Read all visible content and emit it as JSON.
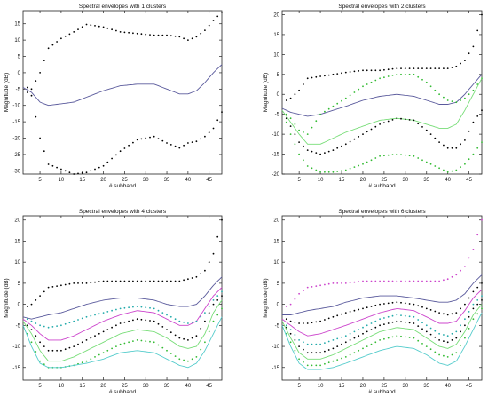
{
  "chart_data": [
    {
      "type": "line",
      "title": "Spectral envelopes with 1 clusters",
      "xlabel": "# subband",
      "ylabel": "Magnitude (dB)",
      "xlim": [
        1,
        48
      ],
      "ylim": [
        -31,
        19
      ],
      "xticks": [
        5,
        10,
        15,
        20,
        25,
        30,
        35,
        40,
        45
      ],
      "yticks": [
        15,
        10,
        5,
        0,
        -5,
        -10,
        -15,
        -20,
        -25,
        -30
      ],
      "grid": false,
      "x": [
        1,
        3,
        5,
        7,
        10,
        13,
        16,
        20,
        24,
        28,
        32,
        35,
        38,
        40,
        42,
        44,
        46,
        48
      ],
      "series": [
        {
          "color": "#5a5a9c",
          "style": "line",
          "values": [
            -4.5,
            -6,
            -9,
            -10,
            -9.5,
            -9,
            -7.5,
            -5.5,
            -4,
            -3.5,
            -3.5,
            -5,
            -6.5,
            -6.5,
            -5.5,
            -3,
            0,
            2.5
          ]
        },
        {
          "color": "#000000",
          "style": "dots",
          "values": [
            -4,
            -5,
            0,
            7.5,
            10.5,
            12.5,
            14.8,
            14,
            12.5,
            12,
            11.5,
            11.5,
            11,
            10,
            11,
            13,
            16,
            18.5
          ]
        },
        {
          "color": "#000000",
          "style": "dots",
          "values": [
            -5,
            -7,
            -20,
            -28,
            -29.5,
            -31,
            -30.5,
            -28.5,
            -24,
            -20.5,
            -19.5,
            -21.5,
            -23,
            -21.5,
            -21,
            -19.5,
            -17,
            -12
          ]
        }
      ]
    },
    {
      "type": "line",
      "title": "Spectral envelopes with 2 clusters",
      "xlabel": "# subband",
      "ylabel": "Magnitude (dB)",
      "xlim": [
        1,
        48
      ],
      "ylim": [
        -20,
        21
      ],
      "xticks": [
        5,
        10,
        15,
        20,
        25,
        30,
        35,
        40,
        45
      ],
      "yticks": [
        20,
        15,
        10,
        5,
        0,
        -5,
        -10,
        -15,
        -20
      ],
      "grid": false,
      "x": [
        1,
        3,
        5,
        7,
        10,
        13,
        16,
        20,
        24,
        28,
        32,
        35,
        38,
        40,
        42,
        44,
        46,
        48
      ],
      "series": [
        {
          "color": "#5a5a9c",
          "style": "line",
          "values": [
            -3.5,
            -4.5,
            -5,
            -5.5,
            -5,
            -4,
            -3,
            -1.5,
            -0.5,
            0,
            -0.5,
            -1.5,
            -2.5,
            -2.5,
            -2,
            0,
            2.5,
            5
          ]
        },
        {
          "color": "#000000",
          "style": "dots",
          "values": [
            -2,
            -1,
            1,
            4,
            4.5,
            5,
            5.5,
            6,
            6,
            6.5,
            6.5,
            6.5,
            6.5,
            6.5,
            7,
            8.5,
            12,
            20
          ]
        },
        {
          "color": "#33bb33",
          "style": "dots",
          "values": [
            -4,
            -6,
            -9,
            -10,
            -5,
            -3,
            -1,
            2,
            4,
            5,
            5,
            3,
            0,
            -1.5,
            -2,
            -1,
            1,
            4
          ]
        },
        {
          "color": "#77dd77",
          "style": "line",
          "values": [
            -4,
            -7,
            -10,
            -12.5,
            -12.5,
            -11,
            -9.5,
            -8,
            -6.5,
            -6,
            -6.5,
            -7.5,
            -8.5,
            -8.5,
            -7.5,
            -4,
            0,
            4
          ]
        },
        {
          "color": "#000000",
          "style": "dots",
          "values": [
            -4,
            -8,
            -12,
            -14,
            -15,
            -14,
            -12.5,
            -10,
            -7.5,
            -6,
            -6.5,
            -9,
            -12,
            -13.5,
            -13.5,
            -11.5,
            -7,
            -4
          ]
        },
        {
          "color": "#33bb33",
          "style": "dots",
          "values": [
            -4,
            -10,
            -15,
            -18,
            -19.5,
            -19.5,
            -19,
            -17.5,
            -15.5,
            -15,
            -15.5,
            -17,
            -18.5,
            -19.5,
            -19,
            -17.5,
            -15,
            -12
          ]
        }
      ]
    },
    {
      "type": "line",
      "title": "Spectral envelopes with 4 clusters",
      "xlabel": "# subband",
      "ylabel": "Magnitude (dB)",
      "xlim": [
        1,
        48
      ],
      "ylim": [
        -18,
        21
      ],
      "xticks": [
        5,
        10,
        15,
        20,
        25,
        30,
        35,
        40,
        45
      ],
      "yticks": [
        20,
        15,
        10,
        5,
        0,
        -5,
        -10,
        -15
      ],
      "grid": false,
      "x": [
        1,
        3,
        5,
        7,
        10,
        13,
        16,
        20,
        24,
        28,
        32,
        35,
        38,
        40,
        42,
        44,
        46,
        48
      ],
      "series": [
        {
          "color": "#000000",
          "style": "dots",
          "values": [
            -1,
            0,
            2,
            4,
            4.5,
            5,
            5,
            5.5,
            5.5,
            5.5,
            5.5,
            5.5,
            5.5,
            6,
            6.5,
            8,
            12,
            20
          ]
        },
        {
          "color": "#5a5a9c",
          "style": "line",
          "values": [
            -3,
            -3.5,
            -3,
            -2.5,
            -2,
            -1,
            0,
            1,
            1.5,
            1.5,
            1,
            0,
            -0.5,
            -0.5,
            0,
            2,
            4.5,
            6.5
          ]
        },
        {
          "color": "#cc44cc",
          "style": "line",
          "values": [
            -3.5,
            -5,
            -7,
            -8.5,
            -8.5,
            -7.5,
            -6,
            -4,
            -2.5,
            -1.5,
            -2,
            -3.5,
            -5,
            -5,
            -4,
            -1,
            2,
            4
          ]
        },
        {
          "color": "#22aaaa",
          "style": "dots",
          "values": [
            -3,
            -4,
            -5,
            -5.5,
            -5,
            -4,
            -3,
            -2,
            -1,
            -0.5,
            -1,
            -2.5,
            -4,
            -4.5,
            -4,
            -2,
            1,
            3
          ]
        },
        {
          "color": "#000000",
          "style": "dots",
          "values": [
            -4,
            -6,
            -9,
            -11,
            -11,
            -10,
            -8.5,
            -6.5,
            -4.5,
            -3.5,
            -4,
            -6,
            -8,
            -8.5,
            -7.5,
            -4,
            0,
            2
          ]
        },
        {
          "color": "#77dd77",
          "style": "line",
          "values": [
            -4,
            -7,
            -11,
            -13.5,
            -13.5,
            -12.5,
            -11,
            -9,
            -7,
            -6,
            -6.5,
            -8,
            -10,
            -10.5,
            -10,
            -7,
            -2,
            1
          ]
        },
        {
          "color": "#33bb33",
          "style": "dots",
          "values": [
            -5,
            -9,
            -13.5,
            -15,
            -15,
            -14.5,
            -13.5,
            -11.5,
            -9.5,
            -8.5,
            -9,
            -11,
            -13,
            -13.5,
            -12.5,
            -9,
            -4,
            -1
          ]
        },
        {
          "color": "#55cccc",
          "style": "line",
          "values": [
            -5,
            -10,
            -14,
            -15,
            -15,
            -14.5,
            -14,
            -13,
            -11.5,
            -11,
            -11.5,
            -13,
            -14.5,
            -15,
            -14,
            -11,
            -7,
            -3
          ]
        }
      ]
    },
    {
      "type": "line",
      "title": "Spectral envelopes with 6 clusters",
      "xlabel": "# subband",
      "ylabel": "Magnitude (dB)",
      "xlim": [
        1,
        48
      ],
      "ylim": [
        -18,
        21
      ],
      "xticks": [
        5,
        10,
        15,
        20,
        25,
        30,
        35,
        40,
        45
      ],
      "yticks": [
        20,
        15,
        10,
        5,
        0,
        -5,
        -10,
        -15
      ],
      "grid": false,
      "x": [
        1,
        3,
        5,
        7,
        10,
        13,
        16,
        20,
        24,
        28,
        32,
        35,
        38,
        40,
        42,
        44,
        46,
        48
      ],
      "series": [
        {
          "color": "#cc44cc",
          "style": "dots",
          "values": [
            -1,
            0,
            2.5,
            4,
            4.5,
            5,
            5,
            5.5,
            5.5,
            5.5,
            5.5,
            5.5,
            5.5,
            6,
            7,
            9,
            13,
            20
          ]
        },
        {
          "color": "#5a5a9c",
          "style": "line",
          "values": [
            -2.5,
            -2.5,
            -2,
            -1.5,
            -1,
            -0.5,
            0.5,
            1.5,
            2,
            2,
            1.5,
            1,
            0.5,
            0.5,
            1,
            2.5,
            5,
            7
          ]
        },
        {
          "color": "#000000",
          "style": "dots",
          "values": [
            -3,
            -4,
            -4.5,
            -4.5,
            -4,
            -3,
            -2,
            -1,
            0,
            0.5,
            0,
            -1,
            -2,
            -2.5,
            -2,
            0,
            3,
            5
          ]
        },
        {
          "color": "#cc44cc",
          "style": "line",
          "values": [
            -3.5,
            -5,
            -6.5,
            -7.5,
            -7,
            -6,
            -5,
            -3.5,
            -2,
            -1,
            -1.5,
            -3,
            -4.5,
            -4.5,
            -4,
            -1.5,
            1.5,
            3.5
          ]
        },
        {
          "color": "#22aaaa",
          "style": "dots",
          "values": [
            -4,
            -6,
            -8.5,
            -9.5,
            -9.5,
            -8.5,
            -7.5,
            -5.5,
            -3.5,
            -2.5,
            -3,
            -5,
            -7,
            -7.5,
            -6.5,
            -3.5,
            0,
            2
          ]
        },
        {
          "color": "#000000",
          "style": "dots",
          "values": [
            -4,
            -7,
            -10,
            -11.5,
            -11.5,
            -10.5,
            -9,
            -7,
            -5,
            -4,
            -4.5,
            -6.5,
            -8.5,
            -9,
            -8,
            -5,
            -1,
            1
          ]
        },
        {
          "color": "#77dd77",
          "style": "line",
          "values": [
            -4,
            -8,
            -11.5,
            -13,
            -13,
            -12,
            -10.5,
            -8.5,
            -6.5,
            -5.5,
            -6,
            -8,
            -10,
            -10.5,
            -9.5,
            -6.5,
            -2.5,
            0
          ]
        },
        {
          "color": "#33bb33",
          "style": "dots",
          "values": [
            -5,
            -9,
            -13,
            -14.5,
            -14.5,
            -13.5,
            -12.5,
            -10.5,
            -8.5,
            -7.5,
            -8,
            -10,
            -12,
            -12.5,
            -11.5,
            -8,
            -3.5,
            -1
          ]
        },
        {
          "color": "#55cccc",
          "style": "line",
          "values": [
            -5,
            -10,
            -14,
            -15.5,
            -15.5,
            -15,
            -14,
            -12.5,
            -11,
            -10,
            -10.5,
            -12,
            -14,
            -14.5,
            -13.5,
            -10,
            -6,
            -2
          ]
        }
      ]
    }
  ]
}
